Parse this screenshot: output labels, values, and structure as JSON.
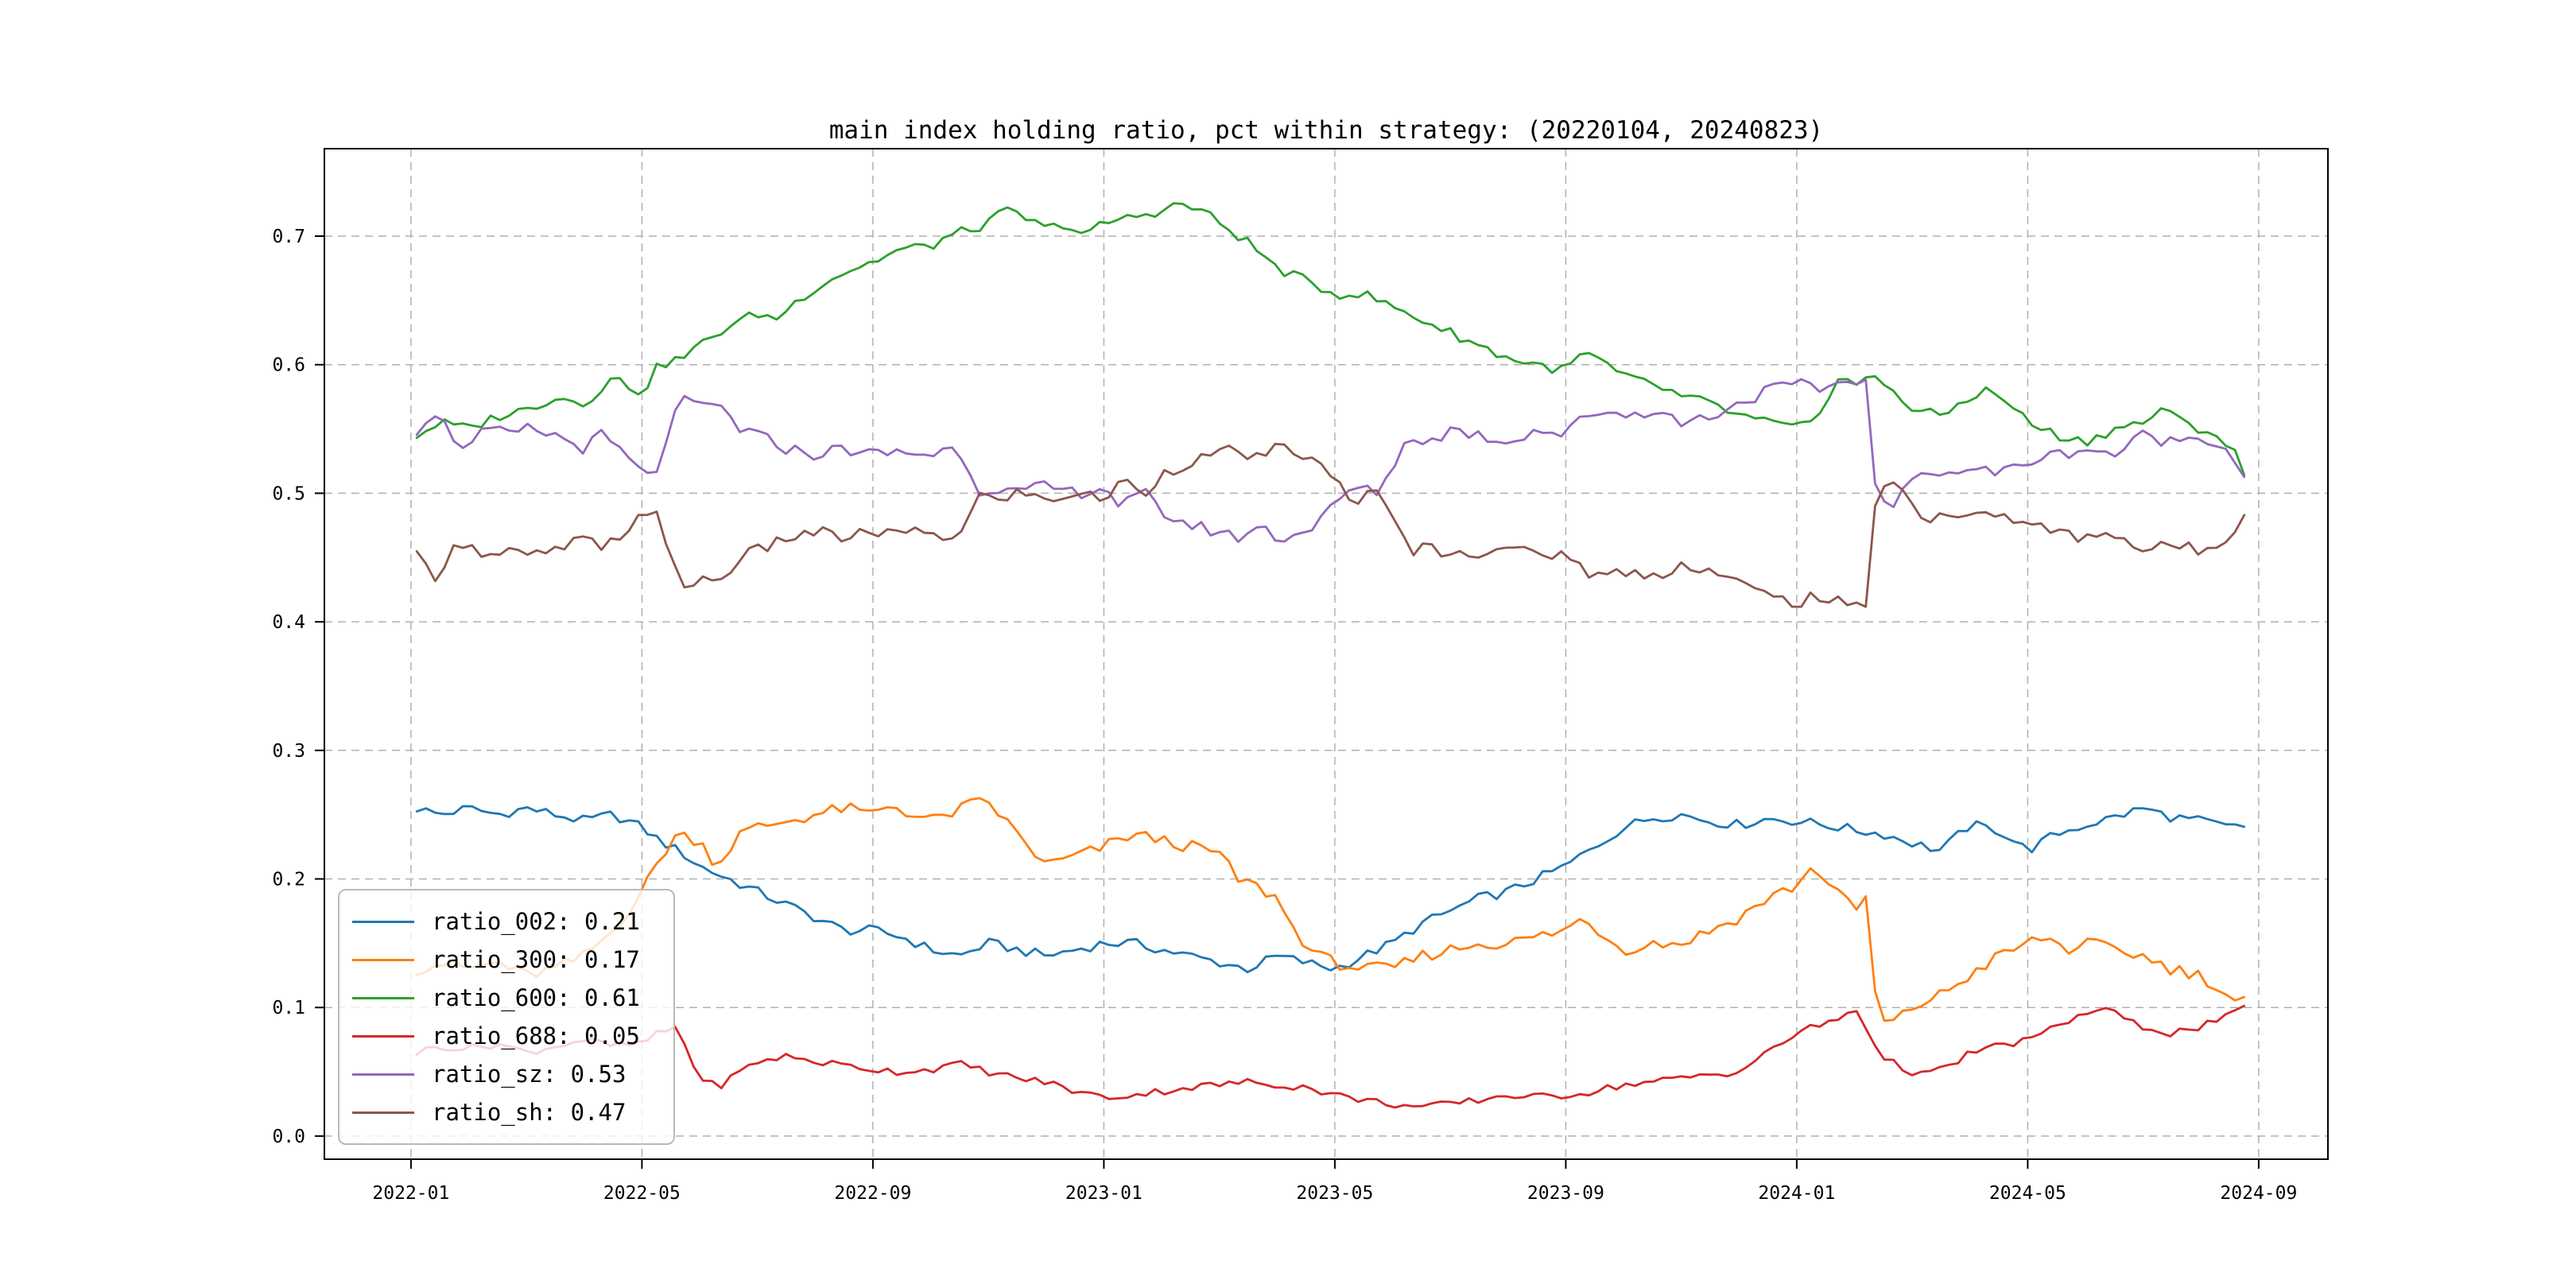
{
  "figure": {
    "title": "main index holding ratio, pct within strategy: (20220104, 20240823)",
    "background": "#ffffff"
  },
  "chart_data": {
    "type": "line",
    "title": "main index holding ratio, pct within strategy: (20220104, 20240823)",
    "xlabel": "",
    "ylabel": "",
    "x_axis": {
      "tick_labels": [
        "2022-01",
        "2022-05",
        "2022-09",
        "2023-01",
        "2023-05",
        "2023-09",
        "2024-01",
        "2024-05",
        "2024-09"
      ],
      "tick_positions_months": [
        0,
        4,
        8,
        12,
        16,
        20,
        24,
        28,
        32
      ],
      "xlim_months": [
        -1.5,
        33.2
      ]
    },
    "y_axis": {
      "tick_labels": [
        "0.0",
        "0.1",
        "0.2",
        "0.3",
        "0.4",
        "0.5",
        "0.6",
        "0.7"
      ],
      "tick_values": [
        0.0,
        0.1,
        0.2,
        0.3,
        0.4,
        0.5,
        0.6,
        0.7
      ],
      "ylim": [
        -0.018,
        0.768
      ]
    },
    "grid": {
      "visible": true,
      "style": "dashed",
      "color": "#b0b0b0"
    },
    "legend": {
      "position": "lower left",
      "entries": [
        {
          "label": "ratio_002: 0.21",
          "color": "#1f77b4"
        },
        {
          "label": "ratio_300: 0.17",
          "color": "#ff7f0e"
        },
        {
          "label": "ratio_600: 0.61",
          "color": "#2ca02c"
        },
        {
          "label": "ratio_688: 0.05",
          "color": "#d62728"
        },
        {
          "label": "ratio_sz: 0.53",
          "color": "#9467bd"
        },
        {
          "label": "ratio_sh: 0.47",
          "color": "#8c564b"
        }
      ]
    },
    "series": [
      {
        "name": "ratio_002",
        "color": "#1f77b4",
        "legend_label": "ratio_002: 0.21",
        "jitter": 0.004,
        "t": [
          0.1,
          0.5,
          1,
          1.5,
          2,
          2.5,
          3,
          3.5,
          4,
          4.3,
          4.7,
          5,
          5.5,
          6,
          6.5,
          7,
          7.5,
          8,
          8.5,
          9,
          9.5,
          10,
          10.5,
          11,
          11.5,
          12,
          12.5,
          13,
          13.5,
          14,
          14.5,
          15,
          15.5,
          16,
          16.5,
          17,
          17.5,
          18,
          18.5,
          19,
          19.5,
          20,
          20.5,
          21,
          21.5,
          22,
          22.5,
          23,
          23.5,
          24,
          24.5,
          25,
          25.5,
          26,
          26.5,
          27,
          27.5,
          28,
          28.5,
          29,
          29.5,
          30,
          30.5,
          31,
          31.5,
          31.75
        ],
        "v": [
          0.255,
          0.25,
          0.255,
          0.25,
          0.255,
          0.25,
          0.245,
          0.25,
          0.24,
          0.23,
          0.22,
          0.21,
          0.2,
          0.19,
          0.18,
          0.17,
          0.16,
          0.16,
          0.155,
          0.145,
          0.14,
          0.15,
          0.145,
          0.14,
          0.145,
          0.15,
          0.15,
          0.145,
          0.14,
          0.135,
          0.13,
          0.14,
          0.135,
          0.13,
          0.14,
          0.15,
          0.165,
          0.175,
          0.185,
          0.19,
          0.2,
          0.21,
          0.225,
          0.24,
          0.248,
          0.25,
          0.245,
          0.242,
          0.247,
          0.245,
          0.242,
          0.238,
          0.235,
          0.228,
          0.222,
          0.242,
          0.238,
          0.222,
          0.235,
          0.242,
          0.248,
          0.255,
          0.248,
          0.245,
          0.24,
          0.24
        ]
      },
      {
        "name": "ratio_300",
        "color": "#ff7f0e",
        "legend_label": "ratio_300: 0.17",
        "jitter": 0.005,
        "t": [
          0.1,
          0.5,
          1,
          1.5,
          2,
          2.5,
          3,
          3.5,
          4,
          4.3,
          4.6,
          5,
          5.3,
          5.7,
          6,
          6.5,
          7,
          7.5,
          8,
          8.3,
          8.7,
          9,
          9.3,
          9.7,
          10,
          10.3,
          10.7,
          11,
          11.3,
          11.7,
          12,
          12.5,
          13,
          13.5,
          14,
          14.3,
          14.6,
          15,
          15.3,
          15.7,
          16,
          16.5,
          17,
          17.5,
          18,
          18.5,
          19,
          19.5,
          20,
          20.3,
          20.7,
          21,
          21.5,
          22,
          22.5,
          23,
          23.5,
          24,
          24.3,
          24.6,
          25,
          25.2,
          25.4,
          25.7,
          26,
          26.5,
          27,
          27.5,
          28,
          28.3,
          28.7,
          29,
          29.5,
          30,
          30.5,
          31,
          31.3,
          31.6,
          31.75
        ],
        "v": [
          0.13,
          0.135,
          0.13,
          0.135,
          0.125,
          0.13,
          0.14,
          0.16,
          0.19,
          0.215,
          0.235,
          0.23,
          0.21,
          0.235,
          0.24,
          0.245,
          0.25,
          0.255,
          0.25,
          0.258,
          0.25,
          0.245,
          0.25,
          0.258,
          0.26,
          0.245,
          0.225,
          0.21,
          0.215,
          0.22,
          0.225,
          0.235,
          0.23,
          0.225,
          0.22,
          0.2,
          0.195,
          0.185,
          0.16,
          0.14,
          0.135,
          0.13,
          0.13,
          0.14,
          0.145,
          0.15,
          0.15,
          0.155,
          0.16,
          0.17,
          0.155,
          0.145,
          0.15,
          0.15,
          0.16,
          0.17,
          0.185,
          0.195,
          0.21,
          0.195,
          0.175,
          0.185,
          0.09,
          0.088,
          0.1,
          0.11,
          0.125,
          0.14,
          0.15,
          0.155,
          0.145,
          0.15,
          0.145,
          0.14,
          0.13,
          0.125,
          0.115,
          0.105,
          0.105
        ]
      },
      {
        "name": "ratio_600",
        "color": "#2ca02c",
        "legend_label": "ratio_600: 0.61",
        "jitter": 0.004,
        "t": [
          0.1,
          0.5,
          1,
          1.5,
          2,
          2.5,
          3,
          3.5,
          4,
          4.3,
          4.7,
          5,
          5.5,
          6,
          6.3,
          6.7,
          7,
          7.5,
          8,
          8.5,
          9,
          9.3,
          9.7,
          10,
          10.3,
          10.6,
          11,
          11.3,
          11.7,
          12,
          12.5,
          13,
          13.3,
          13.7,
          14,
          14.5,
          15,
          15.5,
          16,
          16.5,
          17,
          17.5,
          18,
          18.5,
          19,
          19.5,
          20,
          20.3,
          20.7,
          21,
          21.5,
          22,
          22.5,
          23,
          23.5,
          24,
          24.3,
          24.7,
          25,
          25.3,
          25.7,
          26,
          26.5,
          27,
          27.3,
          27.7,
          28,
          28.5,
          29,
          29.5,
          30,
          30.3,
          30.7,
          31,
          31.3,
          31.6,
          31.75
        ],
        "v": [
          0.545,
          0.555,
          0.55,
          0.56,
          0.565,
          0.575,
          0.57,
          0.59,
          0.578,
          0.6,
          0.605,
          0.615,
          0.63,
          0.64,
          0.635,
          0.65,
          0.66,
          0.672,
          0.68,
          0.69,
          0.692,
          0.7,
          0.705,
          0.71,
          0.72,
          0.715,
          0.705,
          0.71,
          0.7,
          0.71,
          0.715,
          0.72,
          0.725,
          0.72,
          0.71,
          0.695,
          0.675,
          0.665,
          0.655,
          0.655,
          0.645,
          0.635,
          0.625,
          0.615,
          0.605,
          0.6,
          0.595,
          0.61,
          0.6,
          0.59,
          0.585,
          0.575,
          0.57,
          0.56,
          0.555,
          0.55,
          0.555,
          0.59,
          0.585,
          0.59,
          0.58,
          0.565,
          0.56,
          0.575,
          0.58,
          0.57,
          0.555,
          0.545,
          0.54,
          0.55,
          0.555,
          0.565,
          0.555,
          0.55,
          0.545,
          0.53,
          0.515
        ]
      },
      {
        "name": "ratio_688",
        "color": "#d62728",
        "legend_label": "ratio_688: 0.05",
        "jitter": 0.003,
        "t": [
          0.1,
          0.5,
          1,
          1.5,
          2,
          2.5,
          3,
          3.5,
          4,
          4.3,
          4.6,
          5,
          5.3,
          5.7,
          6,
          6.5,
          7,
          7.5,
          8,
          8.5,
          9,
          9.5,
          10,
          10.5,
          11,
          11.5,
          12,
          12.5,
          13,
          13.5,
          14,
          14.5,
          15,
          15.5,
          16,
          16.5,
          17,
          17.5,
          18,
          18.5,
          19,
          19.5,
          20,
          20.5,
          21,
          21.5,
          22,
          22.5,
          23,
          23.5,
          24,
          24.3,
          24.7,
          25,
          25.2,
          25.5,
          26,
          26.3,
          26.7,
          27,
          27.5,
          28,
          28.3,
          28.7,
          29,
          29.3,
          29.7,
          30,
          30.5,
          31,
          31.3,
          31.6,
          31.75
        ],
        "v": [
          0.065,
          0.07,
          0.068,
          0.072,
          0.065,
          0.07,
          0.075,
          0.07,
          0.072,
          0.08,
          0.085,
          0.045,
          0.038,
          0.05,
          0.058,
          0.062,
          0.058,
          0.055,
          0.052,
          0.05,
          0.052,
          0.056,
          0.05,
          0.045,
          0.042,
          0.035,
          0.03,
          0.032,
          0.035,
          0.038,
          0.04,
          0.042,
          0.04,
          0.038,
          0.032,
          0.028,
          0.025,
          0.022,
          0.025,
          0.028,
          0.032,
          0.03,
          0.032,
          0.035,
          0.04,
          0.042,
          0.045,
          0.048,
          0.05,
          0.065,
          0.08,
          0.085,
          0.09,
          0.1,
          0.085,
          0.06,
          0.05,
          0.048,
          0.055,
          0.065,
          0.07,
          0.075,
          0.08,
          0.09,
          0.095,
          0.1,
          0.09,
          0.085,
          0.08,
          0.085,
          0.09,
          0.095,
          0.1
        ]
      },
      {
        "name": "ratio_sz",
        "color": "#9467bd",
        "legend_label": "ratio_sz: 0.53",
        "jitter": 0.005,
        "t": [
          0.1,
          0.4,
          0.7,
          1,
          1.3,
          1.7,
          2,
          2.5,
          3,
          3.3,
          3.7,
          4,
          4.2,
          4.5,
          4.8,
          5,
          5.3,
          5.7,
          6,
          6.5,
          7,
          7.5,
          8,
          8.5,
          9,
          9.3,
          9.6,
          9.8,
          10,
          10.5,
          11,
          11.5,
          12,
          12.3,
          12.7,
          13,
          13.5,
          14,
          14.3,
          14.7,
          15,
          15.5,
          16,
          16.3,
          16.7,
          17,
          17.3,
          17.7,
          18,
          18.5,
          19,
          19.5,
          20,
          20.3,
          20.7,
          21,
          21.5,
          22,
          22.5,
          23,
          23.5,
          24,
          24.3,
          24.7,
          25,
          25.2,
          25.4,
          25.7,
          26,
          26.3,
          26.7,
          27,
          27.5,
          28,
          28.5,
          29,
          29.5,
          30,
          30.5,
          31,
          31.3,
          31.6,
          31.75
        ],
        "v": [
          0.55,
          0.565,
          0.545,
          0.535,
          0.55,
          0.545,
          0.55,
          0.545,
          0.535,
          0.545,
          0.53,
          0.515,
          0.51,
          0.555,
          0.575,
          0.565,
          0.57,
          0.55,
          0.545,
          0.535,
          0.53,
          0.535,
          0.53,
          0.532,
          0.53,
          0.535,
          0.53,
          0.5,
          0.505,
          0.5,
          0.505,
          0.5,
          0.505,
          0.49,
          0.5,
          0.485,
          0.475,
          0.47,
          0.465,
          0.475,
          0.465,
          0.47,
          0.49,
          0.505,
          0.5,
          0.52,
          0.545,
          0.54,
          0.55,
          0.545,
          0.54,
          0.55,
          0.545,
          0.56,
          0.565,
          0.56,
          0.565,
          0.555,
          0.56,
          0.57,
          0.58,
          0.585,
          0.58,
          0.585,
          0.59,
          0.585,
          0.49,
          0.49,
          0.51,
          0.52,
          0.515,
          0.52,
          0.515,
          0.525,
          0.53,
          0.535,
          0.53,
          0.545,
          0.54,
          0.545,
          0.54,
          0.525,
          0.515
        ]
      },
      {
        "name": "ratio_sh",
        "color": "#8c564b",
        "legend_label": "ratio_sh: 0.47",
        "jitter": 0.005,
        "t": [
          0.1,
          0.4,
          0.7,
          1,
          1.3,
          1.7,
          2,
          2.5,
          3,
          3.3,
          3.7,
          4,
          4.2,
          4.5,
          4.8,
          5,
          5.3,
          5.7,
          6,
          6.5,
          7,
          7.5,
          8,
          8.5,
          9,
          9.3,
          9.6,
          9.8,
          10,
          10.5,
          11,
          11.5,
          12,
          12.3,
          12.7,
          13,
          13.5,
          14,
          14.3,
          14.7,
          15,
          15.5,
          16,
          16.3,
          16.7,
          17,
          17.3,
          17.7,
          18,
          18.5,
          19,
          19.5,
          20,
          20.3,
          20.7,
          21,
          21.5,
          22,
          22.5,
          23,
          23.5,
          24,
          24.3,
          24.7,
          25,
          25.2,
          25.4,
          25.7,
          26,
          26.3,
          26.7,
          27,
          27.5,
          28,
          28.5,
          29,
          29.5,
          30,
          30.5,
          31,
          31.3,
          31.6,
          31.75
        ],
        "v": [
          0.45,
          0.435,
          0.455,
          0.465,
          0.45,
          0.455,
          0.45,
          0.455,
          0.465,
          0.455,
          0.47,
          0.485,
          0.49,
          0.445,
          0.425,
          0.435,
          0.43,
          0.45,
          0.455,
          0.465,
          0.47,
          0.465,
          0.47,
          0.468,
          0.47,
          0.465,
          0.47,
          0.5,
          0.495,
          0.5,
          0.495,
          0.5,
          0.495,
          0.51,
          0.5,
          0.515,
          0.525,
          0.53,
          0.535,
          0.525,
          0.535,
          0.53,
          0.51,
          0.495,
          0.5,
          0.48,
          0.455,
          0.46,
          0.45,
          0.455,
          0.46,
          0.45,
          0.455,
          0.44,
          0.435,
          0.44,
          0.435,
          0.445,
          0.44,
          0.43,
          0.42,
          0.415,
          0.42,
          0.415,
          0.41,
          0.415,
          0.51,
          0.51,
          0.49,
          0.48,
          0.485,
          0.48,
          0.485,
          0.475,
          0.47,
          0.465,
          0.47,
          0.455,
          0.46,
          0.455,
          0.46,
          0.475,
          0.485
        ]
      }
    ]
  }
}
